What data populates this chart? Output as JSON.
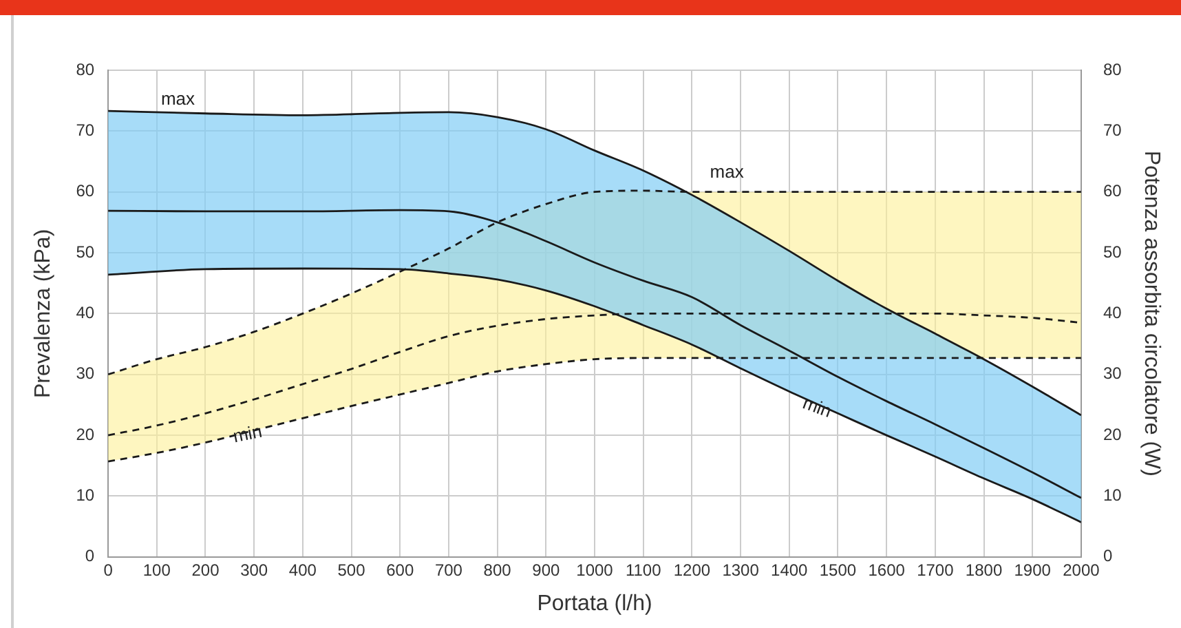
{
  "chart_data": {
    "type": "line",
    "xlabel": "Portata (l/h)",
    "ylabel": "Prevalenza (kPa)",
    "y2label": "Potenza assorbita circolatore (W)",
    "xlim": [
      0,
      2000
    ],
    "xticks": [
      0,
      100,
      200,
      300,
      400,
      500,
      600,
      700,
      800,
      900,
      1000,
      1100,
      1200,
      1300,
      1400,
      1500,
      1600,
      1700,
      1800,
      1900,
      2000
    ],
    "ylim": [
      0,
      80
    ],
    "yticks": [
      0,
      10,
      20,
      30,
      40,
      50,
      60,
      70,
      80
    ],
    "y2lim": [
      0,
      80
    ],
    "y2ticks": [
      0,
      10,
      20,
      30,
      40,
      50,
      60,
      70,
      80
    ],
    "grid": true,
    "legend": false,
    "marker": "none",
    "series": [
      {
        "axis": "y",
        "color": "#1a1a1a",
        "line_style": "solid",
        "x": [
          0,
          200,
          400,
          600,
          700,
          800,
          900,
          1000,
          1100,
          1200,
          1300,
          1400,
          1500,
          1600,
          1700,
          1800,
          1900,
          2000
        ],
        "values": [
          73.3,
          72.9,
          72.6,
          73,
          73.1,
          72.3,
          70.3,
          66.8,
          63.5,
          59.5,
          55,
          50.3,
          45.4,
          40.8,
          36.7,
          32.5,
          28,
          23.3
        ]
      },
      {
        "axis": "y",
        "color": "#1a1a1a",
        "line_style": "solid",
        "x": [
          0,
          200,
          400,
          600,
          700,
          800,
          900,
          1000,
          1100,
          1200,
          1300,
          1400,
          1500,
          1600,
          1700,
          1800,
          1900,
          2000
        ],
        "values": [
          56.9,
          56.8,
          56.8,
          57,
          56.8,
          55,
          51.9,
          48.4,
          45.4,
          42.7,
          38.1,
          33.9,
          29.6,
          25.6,
          21.8,
          17.9,
          13.9,
          9.7
        ],
        "lower": [
          46.4,
          47.3,
          47.4,
          47.3,
          46.6,
          45.6,
          43.8,
          41.2,
          38.1,
          34.9,
          31,
          27.2,
          23.6,
          20,
          16.5,
          12.9,
          9.5,
          5.7
        ],
        "upper": [
          73.3,
          72.9,
          72.6,
          73,
          73.1,
          72.3,
          70.3,
          66.8,
          63.5,
          59.5,
          55,
          50.3,
          45.4,
          40.8,
          36.7,
          32.5,
          28,
          23.3
        ]
      },
      {
        "axis": "y",
        "color": "#1a1a1a",
        "line_style": "solid",
        "x": [
          0,
          200,
          400,
          600,
          700,
          800,
          900,
          1000,
          1100,
          1200,
          1300,
          1400,
          1500,
          1600,
          1700,
          1800,
          1900,
          2000
        ],
        "values": [
          46.4,
          47.3,
          47.4,
          47.3,
          46.6,
          45.6,
          43.8,
          41.2,
          38.1,
          34.9,
          31,
          27.2,
          23.6,
          20,
          16.5,
          12.9,
          9.5,
          5.7
        ]
      },
      {
        "axis": "y2",
        "color": "#1a1a1a",
        "line_style": "dashed",
        "x": [
          0,
          100,
          200,
          300,
          400,
          500,
          600,
          700,
          800,
          900,
          1000,
          1100,
          1200,
          1300,
          1400,
          1500,
          1600,
          1700,
          1800,
          1900,
          2000
        ],
        "values": [
          30,
          32.5,
          34.5,
          37,
          40,
          43.3,
          46.9,
          50.7,
          55,
          58,
          60,
          60.2,
          60,
          60,
          60,
          60,
          60,
          60,
          60,
          60,
          60
        ]
      },
      {
        "axis": "y2",
        "color": "#1a1a1a",
        "line_style": "dashed",
        "x": [
          0,
          100,
          200,
          300,
          400,
          500,
          600,
          700,
          800,
          900,
          1000,
          1100,
          1200,
          1300,
          1400,
          1500,
          1600,
          1700,
          1800,
          1900,
          2000
        ],
        "values": [
          20,
          21.6,
          23.6,
          25.9,
          28.4,
          30.9,
          33.7,
          36.3,
          38,
          39.1,
          39.7,
          40,
          40,
          40,
          40,
          40,
          40,
          40,
          39.7,
          39.3,
          38.5
        ],
        "lower": [
          15.7,
          17.1,
          18.8,
          20.8,
          22.8,
          24.8,
          26.7,
          28.6,
          30.5,
          31.7,
          32.5,
          32.7,
          32.7,
          32.7,
          32.7,
          32.7,
          32.7,
          32.7,
          32.7,
          32.7,
          32.7
        ],
        "upper": [
          30,
          32.5,
          34.5,
          37,
          40,
          43.3,
          46.9,
          50.7,
          55,
          58,
          60,
          60.2,
          60,
          60,
          60,
          60,
          60,
          60,
          60,
          60,
          60
        ]
      },
      {
        "axis": "y2",
        "color": "#1a1a1a",
        "line_style": "dashed",
        "x": [
          0,
          100,
          200,
          300,
          400,
          500,
          600,
          700,
          800,
          900,
          1000,
          1100,
          1200,
          1300,
          1400,
          1500,
          1600,
          1700,
          1800,
          1900,
          2000
        ],
        "values": [
          15.7,
          17.1,
          18.8,
          20.8,
          22.8,
          24.8,
          26.7,
          28.6,
          30.5,
          31.7,
          32.5,
          32.7,
          32.7,
          32.7,
          32.7,
          32.7,
          32.7,
          32.7,
          32.7,
          32.7,
          32.7
        ]
      }
    ],
    "annotations": [
      {
        "text": "max",
        "x": 200,
        "y": 72.9
      },
      {
        "text": "min",
        "x": 400,
        "y": 22.8
      },
      {
        "text": "max",
        "x": 1300,
        "y": 60
      },
      {
        "text": "min",
        "x": 1400,
        "y": 27.2
      }
    ]
  }
}
